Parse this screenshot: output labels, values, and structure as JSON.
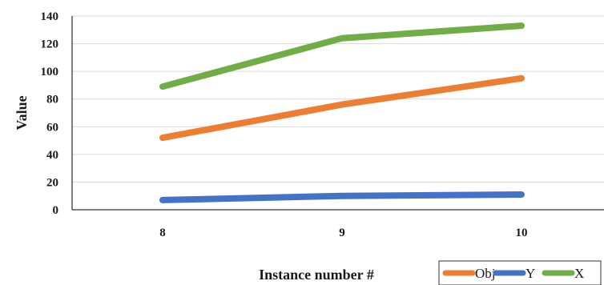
{
  "chart_data": {
    "type": "line",
    "title": "",
    "xlabel": "Instance number #",
    "ylabel": "Value",
    "categories": [
      "8",
      "9",
      "10"
    ],
    "ylim": [
      0,
      140
    ],
    "yticks": [
      0,
      20,
      40,
      60,
      80,
      100,
      120,
      140
    ],
    "grid": true,
    "legend_position": "bottom-right",
    "series": [
      {
        "name": "Obj",
        "color": "#ED7D31",
        "values": [
          52,
          76,
          95
        ]
      },
      {
        "name": "Y",
        "color": "#4472C4",
        "values": [
          7,
          10,
          11
        ]
      },
      {
        "name": "X",
        "color": "#70AD47",
        "values": [
          89,
          124,
          133
        ]
      }
    ]
  }
}
